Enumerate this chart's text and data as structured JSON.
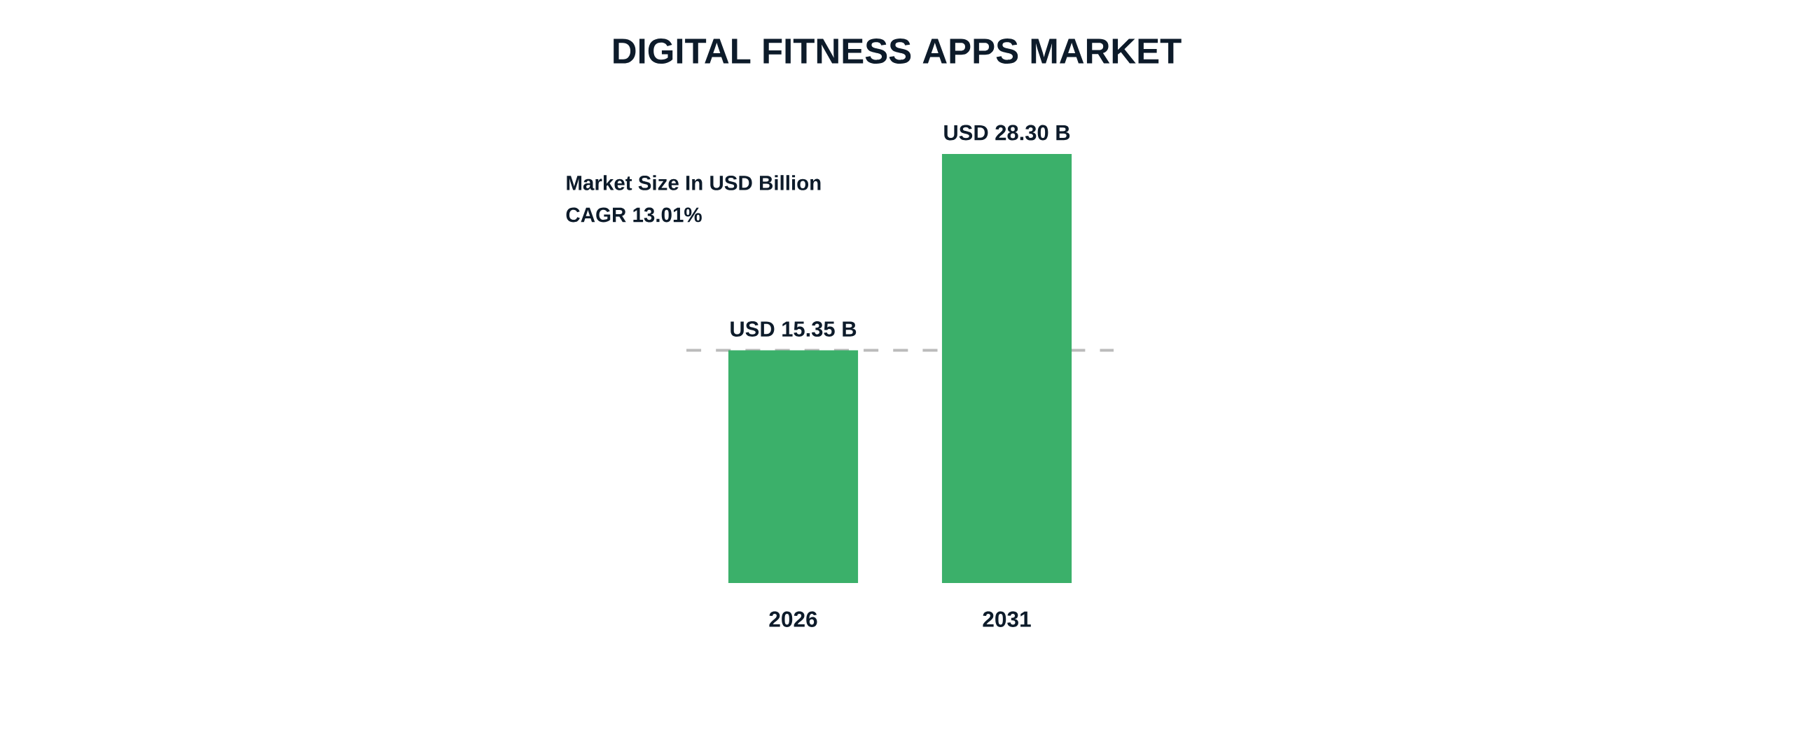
{
  "chart_data": {
    "type": "bar",
    "title": "DIGITAL FITNESS APPS MARKET",
    "categories": [
      "2026",
      "2031"
    ],
    "values": [
      15.35,
      28.3
    ],
    "color": "#3bb06a",
    "value_labels": [
      "USD 15.35 B",
      "USD 28.30 B"
    ],
    "annotations": [
      "Market Size In USD Billion",
      "CAGR 13.01%"
    ],
    "ref_lines": [
      {
        "axis": "y",
        "value": 15.35,
        "color": "#bbbbbb",
        "line_style": "dashed"
      }
    ],
    "tick_labels": "x"
  }
}
